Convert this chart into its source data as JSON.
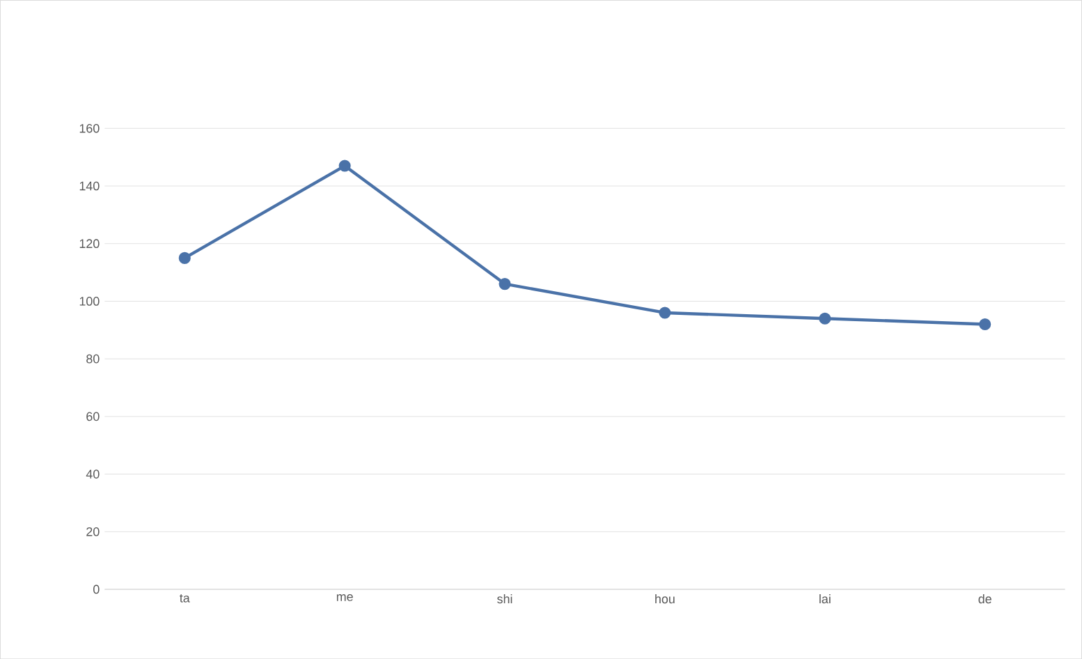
{
  "chart_data": {
    "type": "line",
    "categories": [
      "ta",
      "me",
      "shi",
      "hou",
      "lai",
      "de"
    ],
    "series": [
      {
        "color": "#4a72a8",
        "values": [
          115,
          147,
          106,
          96,
          94,
          92
        ]
      }
    ],
    "ylim": [
      0,
      160
    ],
    "yticks": [
      0,
      20,
      40,
      60,
      80,
      100,
      120,
      140,
      160
    ],
    "grid": "y",
    "marker": "circle",
    "line_style": "solid"
  }
}
